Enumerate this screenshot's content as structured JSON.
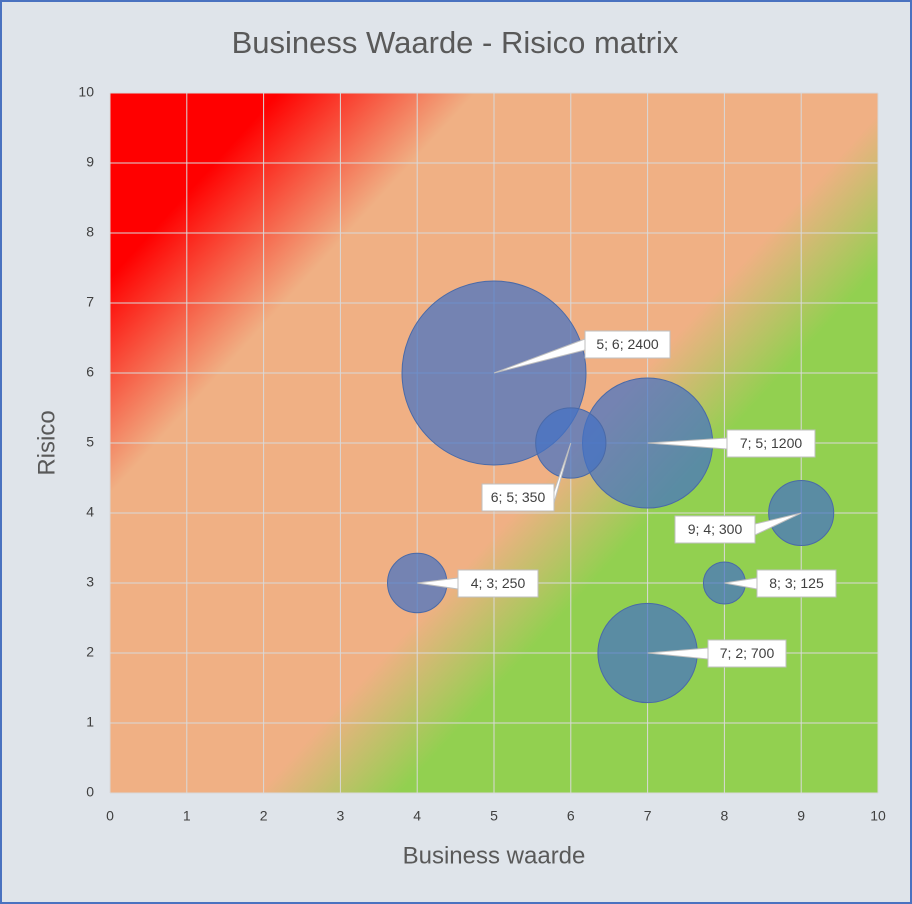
{
  "chart_data": {
    "type": "bubble",
    "title": "Business Waarde - Risico matrix",
    "x_label": "Business waarde",
    "y_label": "Risico",
    "x": [
      5,
      7,
      6,
      9,
      4,
      8,
      7
    ],
    "values": [
      6,
      5,
      5,
      4,
      3,
      3,
      2
    ],
    "sizes": [
      2400,
      1200,
      350,
      300,
      250,
      125,
      700
    ],
    "value_labels": [
      "5; 6; 2400",
      "7; 5; 1200",
      "6; 5; 350",
      "9; 4; 300",
      "4; 3; 250",
      "8; 3; 125",
      "7; 2; 700"
    ],
    "color": "#4472c4",
    "xlim": [
      0,
      10
    ],
    "xticks": [
      0,
      1,
      2,
      3,
      4,
      5,
      6,
      7,
      8,
      9,
      10
    ],
    "ylim": [
      0,
      10
    ],
    "yticks": [
      0,
      1,
      2,
      3,
      4,
      5,
      6,
      7,
      8,
      9,
      10
    ],
    "grid": true
  }
}
